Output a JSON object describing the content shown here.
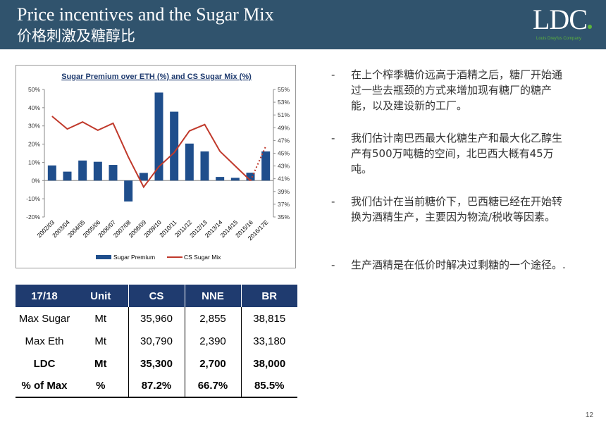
{
  "header": {
    "title_en": "Price incentives and the Sugar Mix",
    "title_cn": "价格刺激及糖醇比",
    "logo": "LDC",
    "logo_sub": "Louis Dreyfus Company"
  },
  "chart_data": {
    "type": "bar+line",
    "title": "Sugar Premium over ETH (%) and CS Sugar Mix (%)",
    "categories": [
      "2002/03",
      "2003/04",
      "2004/05",
      "2005/06",
      "2006/07",
      "2007/08",
      "2008/09",
      "2009/10",
      "2010/11",
      "2011/12",
      "2012/13",
      "2013/14",
      "2014/15",
      "2015/16",
      "2016/17E"
    ],
    "series": [
      {
        "name": "Sugar Premium",
        "type": "bar",
        "axis": "left",
        "color": "#1f4e8c",
        "values": [
          8.3,
          4.9,
          11,
          10.3,
          8.6,
          -11.5,
          4.2,
          48.3,
          37.8,
          20.3,
          16,
          2,
          1.5,
          4.3,
          16
        ]
      },
      {
        "name": "CS Sugar Mix",
        "type": "line",
        "axis": "right",
        "color": "#c0392b",
        "values": [
          50.8,
          48.8,
          49.9,
          48.6,
          49.7,
          44.4,
          39.7,
          42.9,
          45.1,
          48.5,
          49.5,
          45.3,
          43,
          40.7,
          46.1
        ],
        "dotted_last_segment": true
      }
    ],
    "yleft": {
      "ylim": [
        -20,
        50
      ],
      "ticks": [
        "-20%",
        "-10%",
        "0%",
        "10%",
        "20%",
        "30%",
        "40%",
        "50%"
      ]
    },
    "yright": {
      "ylim": [
        35,
        55
      ],
      "ticks": [
        "35%",
        "37%",
        "39%",
        "41%",
        "43%",
        "45%",
        "47%",
        "49%",
        "51%",
        "53%",
        "55%"
      ]
    },
    "legend": "bottom"
  },
  "table": {
    "headers": [
      "17/18",
      "Unit",
      "CS",
      "NNE",
      "BR"
    ],
    "rows": [
      [
        "Max Sugar",
        "Mt",
        "35,960",
        "2,855",
        "38,815"
      ],
      [
        "Max Eth",
        "Mt",
        "30,790",
        "2,390",
        "33,180"
      ],
      [
        "LDC",
        "Mt",
        "35,300",
        "2,700",
        "38,000"
      ],
      [
        "% of Max",
        "%",
        "87.2%",
        "66.7%",
        "85.5%"
      ]
    ]
  },
  "bullets": [
    {
      "dash": "-",
      "text": "在上个榨季糖价远高于酒精之后，糖厂开始通过一些去瓶颈的方式来增加现有糖厂的糖产能，以及建设新的工厂。"
    },
    {
      "dash": "-",
      "text": "我们估计南巴西最大化糖生产和最大化乙醇生产有500万吨糖的空间，北巴西大概有45万吨。"
    },
    {
      "dash": "-",
      "text": "我们估计在当前糖价下，巴西糖已经在开始转换为酒精生产，主要因为物流/税收等因素。"
    },
    {
      "dash": "-",
      "text": "生产酒精是在低价时解决过剩糖的一个途径。."
    }
  ],
  "page_number": "12"
}
